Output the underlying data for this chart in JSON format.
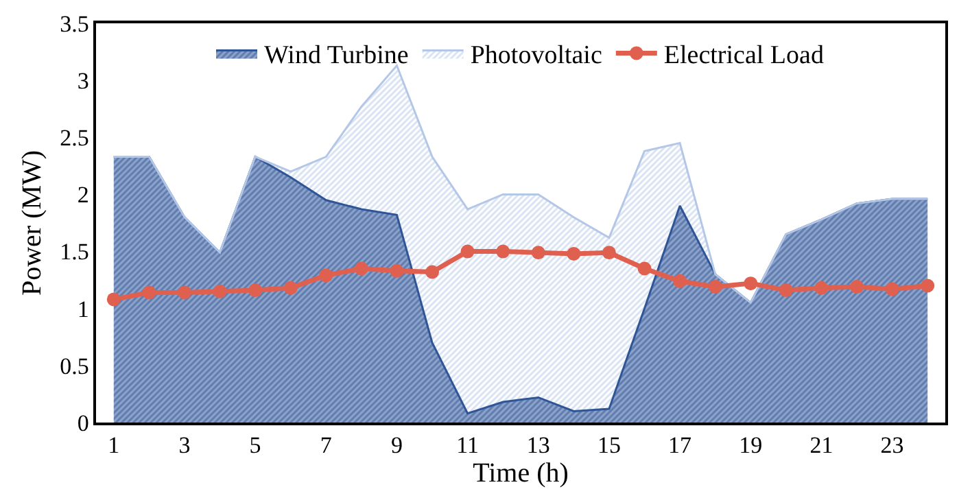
{
  "chart_data": {
    "type": "area",
    "stacked": true,
    "xlabel": "Time (h)",
    "ylabel": "Power (MW)",
    "x": [
      1,
      2,
      3,
      4,
      5,
      6,
      7,
      8,
      9,
      10,
      11,
      12,
      13,
      14,
      15,
      16,
      17,
      18,
      19,
      20,
      21,
      22,
      23,
      24
    ],
    "xlim": [
      0.5,
      24.5
    ],
    "xticks": [
      1,
      3,
      5,
      7,
      9,
      11,
      13,
      15,
      17,
      19,
      21,
      23
    ],
    "ylim": [
      0,
      3.5
    ],
    "yticks": [
      0,
      0.5,
      1,
      1.5,
      2,
      2.5,
      3,
      3.5
    ],
    "legend": "top",
    "series": [
      {
        "name": "Wind Turbine",
        "color": "#2f5597",
        "values": [
          2.33,
          2.33,
          1.8,
          1.49,
          2.33,
          2.15,
          1.95,
          1.87,
          1.82,
          0.7,
          0.08,
          0.18,
          0.22,
          0.1,
          0.12,
          1.0,
          1.9,
          1.3,
          1.05,
          1.65,
          1.78,
          1.92,
          1.96,
          1.96
        ]
      },
      {
        "name": "Photovoltaic",
        "color": "#b4c7e7",
        "values": [
          0,
          0,
          0,
          0,
          0,
          0.05,
          0.38,
          0.9,
          1.31,
          1.63,
          1.79,
          1.82,
          1.78,
          1.7,
          1.5,
          1.38,
          0.55,
          0,
          0,
          0,
          0,
          0,
          0,
          0
        ]
      },
      {
        "name": "Electrical Load",
        "type": "line",
        "marker": "circle",
        "color": "#e0604f",
        "values": [
          1.08,
          1.14,
          1.14,
          1.15,
          1.16,
          1.18,
          1.29,
          1.35,
          1.33,
          1.32,
          1.5,
          1.5,
          1.49,
          1.48,
          1.49,
          1.35,
          1.24,
          1.19,
          1.22,
          1.16,
          1.18,
          1.19,
          1.17,
          1.2
        ]
      }
    ]
  }
}
